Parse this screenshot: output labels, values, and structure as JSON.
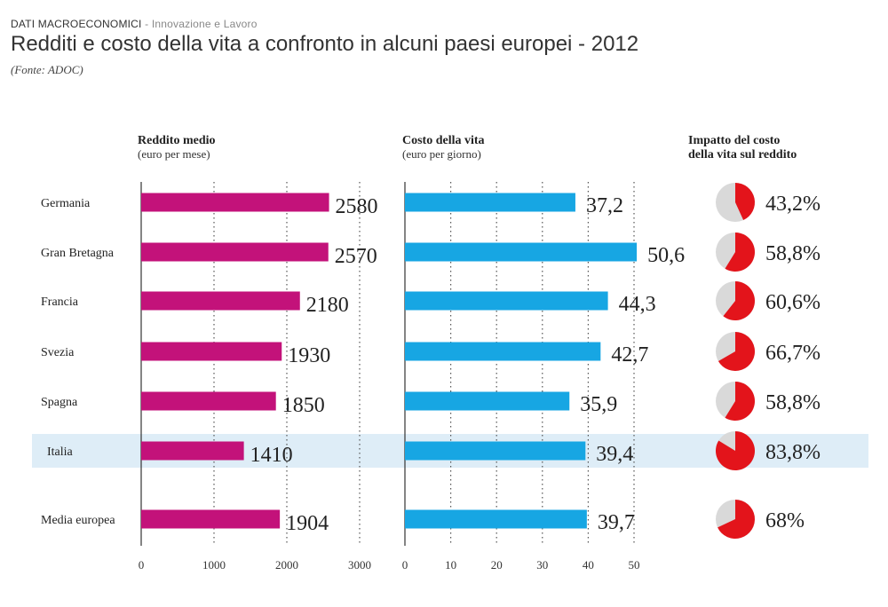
{
  "header": {
    "section": "DATI MACROECONOMICI",
    "separator": " - ",
    "subsection": "Innovazione e Lavoro",
    "title": "Redditi e costo della vita a confronto in alcuni paesi europei - 2012",
    "source": "(Fonte: ADOC)"
  },
  "chart_data": {
    "type": "bar",
    "categories": [
      "Germania",
      "Gran Bretagna",
      "Francia",
      "Svezia",
      "Spagna",
      "Italia",
      "Media europea"
    ],
    "highlight": "Italia",
    "colors": {
      "income": "#c3127a",
      "cost": "#17a6e3",
      "impact": "#e3141b",
      "impact_bg": "#d9d9d9",
      "highlight_band": "#deedf7"
    },
    "panels": {
      "income": {
        "title": "Reddito medio",
        "subtitle": "(euro per mese)",
        "values": [
          2580,
          2570,
          2180,
          1930,
          1850,
          1410,
          1904
        ],
        "labels": [
          "2580",
          "2570",
          "2180",
          "1930",
          "1850",
          "1410",
          "1904"
        ],
        "xlim": [
          0,
          3000
        ],
        "ticks": [
          "0",
          "1000",
          "2000",
          "3000"
        ],
        "tick_values": [
          0,
          1000,
          2000,
          3000
        ]
      },
      "cost": {
        "title": "Costo della vita",
        "subtitle": "(euro per giorno)",
        "values": [
          37.2,
          50.6,
          44.3,
          42.7,
          35.9,
          39.4,
          39.7
        ],
        "labels": [
          "37,2",
          "50,6",
          "44,3",
          "42,7",
          "35,9",
          "39,4",
          "39,7"
        ],
        "xlim": [
          0,
          50
        ],
        "ticks": [
          "0",
          "10",
          "20",
          "30",
          "40",
          "50"
        ],
        "tick_values": [
          0,
          10,
          20,
          30,
          40,
          50
        ]
      },
      "impact": {
        "title_line1": "Impatto del costo",
        "title_line2": "della vita sul reddito",
        "values": [
          43.2,
          58.8,
          60.6,
          66.7,
          58.8,
          83.8,
          68
        ],
        "labels": [
          "43,2%",
          "58,8%",
          "60,6%",
          "66,7%",
          "58,8%",
          "83,8%",
          "68%"
        ]
      }
    },
    "grid": true
  }
}
